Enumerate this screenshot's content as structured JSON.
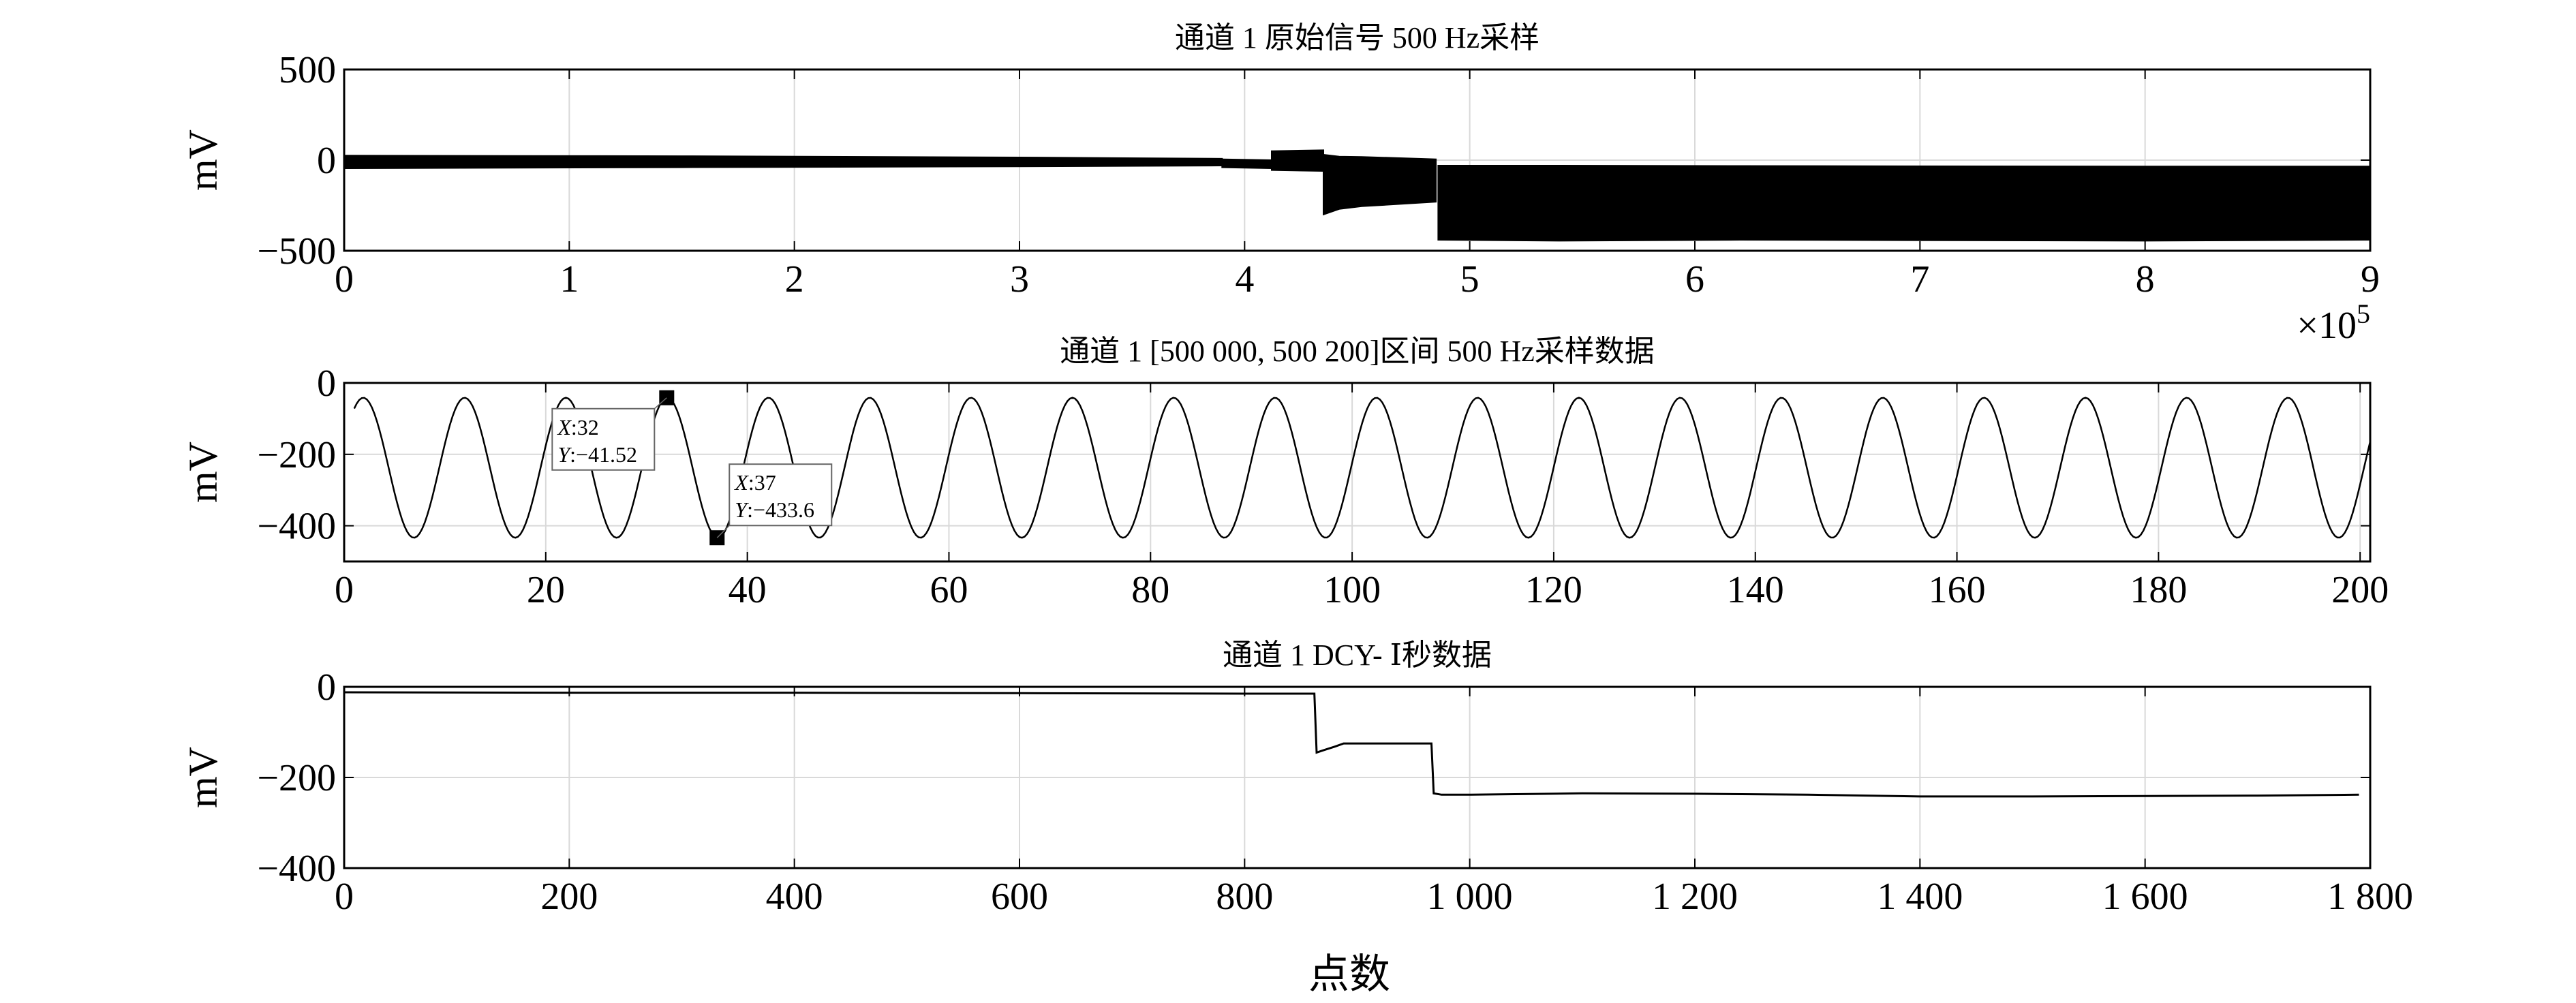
{
  "chart_data": [
    {
      "type": "line",
      "title": "通道 1 原始信号 500 Hz采样",
      "xlabel": "",
      "ylabel": "mV",
      "xlim": [
        0,
        900000
      ],
      "ylim": [
        -500,
        500
      ],
      "x_ticks": [
        0,
        1,
        2,
        3,
        4,
        5,
        6,
        7,
        8,
        9
      ],
      "x_tick_labels": [
        "0",
        "1",
        "2",
        "3",
        "4",
        "5",
        "6",
        "7",
        "8",
        "9"
      ],
      "x_exponent": "×10",
      "x_exponent_power": "5",
      "y_ticks": [
        500,
        0,
        -500
      ],
      "y_tick_labels": [
        "500",
        "0",
        "−500"
      ],
      "grid": true,
      "series": [
        {
          "style": "dense-oscillation-band",
          "segments": [
            {
              "x": [
                0,
                150000,
                300000,
                390000
              ],
              "upper": [
                25,
                22,
                15,
                8
              ],
              "lower": [
                -45,
                -40,
                -35,
                -30
              ]
            },
            {
              "x": [
                390000,
                412000
              ],
              "upper": [
                5,
                0
              ],
              "lower": [
                -40,
                -45
              ]
            },
            {
              "x": [
                412000,
                435000
              ],
              "upper": [
                50,
                55
              ],
              "lower": [
                -55,
                -60
              ]
            },
            {
              "x": [
                435000,
                442000,
                452000,
                485000
              ],
              "upper": [
                30,
                20,
                18,
                5
              ],
              "lower": [
                -300,
                -270,
                -255,
                -230
              ]
            },
            {
              "x": [
                486000,
                540000,
                620000,
                800000,
                900000
              ],
              "upper": [
                -30,
                -30,
                -32,
                -35,
                -35
              ],
              "lower": [
                -440,
                -445,
                -440,
                -445,
                -440
              ]
            }
          ]
        }
      ]
    },
    {
      "type": "line",
      "title": "通道 1 [500 000, 500 200]区间 500 Hz采样数据",
      "xlabel": "",
      "ylabel": "mV",
      "xlim": [
        0,
        201
      ],
      "ylim": [
        -500,
        0
      ],
      "x_ticks": [
        0,
        20,
        40,
        60,
        80,
        100,
        120,
        140,
        160,
        180,
        200
      ],
      "x_tick_labels": [
        "0",
        "20",
        "40",
        "60",
        "80",
        "100",
        "120",
        "140",
        "160",
        "180",
        "200"
      ],
      "y_ticks": [
        0,
        -200,
        -400
      ],
      "y_tick_labels": [
        "0",
        "−200",
        "−400"
      ],
      "grid": true,
      "series": [
        {
          "style": "sine",
          "period": 10.05,
          "peak": -41.5,
          "trough": -433.6,
          "phase_peak_x": 1.9,
          "x_range": [
            1,
            201
          ]
        }
      ],
      "annotations": [
        {
          "x": 32,
          "y": -41.52,
          "x_label": "X",
          "x_text": ":32",
          "y_label": "Y",
          "y_text": ":−41.52",
          "box_side": "left"
        },
        {
          "x": 37,
          "y": -433.6,
          "x_label": "X",
          "x_text": ":37",
          "y_label": "Y",
          "y_text": ":−433.6",
          "box_side": "right"
        }
      ]
    },
    {
      "type": "line",
      "title": "通道 1 DCY- Ⅰ秒数据",
      "xlabel": "点数",
      "ylabel": "mV",
      "xlim": [
        0,
        1800
      ],
      "ylim": [
        -400,
        0
      ],
      "x_ticks": [
        0,
        200,
        400,
        600,
        800,
        1000,
        1200,
        1400,
        1600,
        1800
      ],
      "x_tick_labels": [
        "0",
        "200",
        "400",
        "600",
        "800",
        "1 000",
        "1 200",
        "1 400",
        "1 600",
        "1 800"
      ],
      "y_ticks": [
        0,
        -200,
        -400
      ],
      "y_tick_labels": [
        "0",
        "−200",
        "−400"
      ],
      "grid": true,
      "series": [
        {
          "x": [
            0,
            200,
            400,
            600,
            800,
            862,
            864,
            870,
            880,
            888,
            900,
            960,
            966,
            968,
            975,
            1000,
            1100,
            1200,
            1300,
            1400,
            1500,
            1600,
            1700,
            1790
          ],
          "y": [
            -12,
            -13,
            -13,
            -14,
            -15,
            -15,
            -145,
            -140,
            -132,
            -125,
            -125,
            -125,
            -125,
            -235,
            -238,
            -238,
            -235,
            -236,
            -238,
            -242,
            -242,
            -241,
            -240,
            -238
          ]
        }
      ]
    }
  ]
}
